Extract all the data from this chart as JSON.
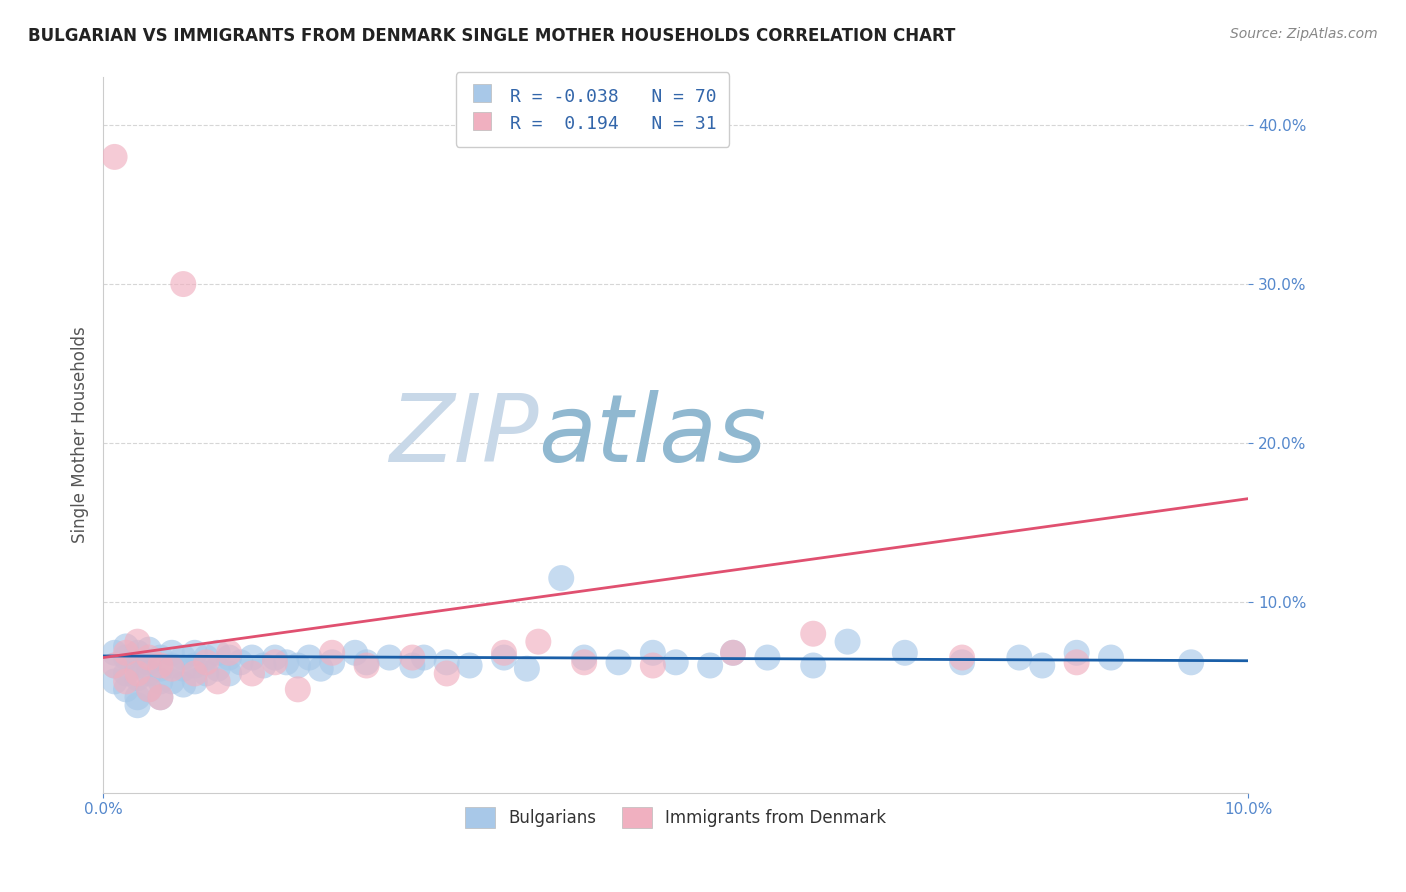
{
  "title": "BULGARIAN VS IMMIGRANTS FROM DENMARK SINGLE MOTHER HOUSEHOLDS CORRELATION CHART",
  "source": "Source: ZipAtlas.com",
  "ylabel": "Single Mother Households",
  "xlim": [
    0.0,
    0.1
  ],
  "ylim": [
    -0.02,
    0.43
  ],
  "blue_R": -0.038,
  "blue_N": 70,
  "pink_R": 0.194,
  "pink_N": 31,
  "blue_color": "#a8c8e8",
  "pink_color": "#f0b0c0",
  "blue_line_color": "#1a5fa8",
  "pink_line_color": "#e05070",
  "grid_color": "#cccccc",
  "watermark_zip_color": "#c8d8e8",
  "watermark_atlas_color": "#90b8d0",
  "legend_label_blue": "Bulgarians",
  "legend_label_pink": "Immigrants from Denmark",
  "title_color": "#222222",
  "source_color": "#888888",
  "axis_label_color": "#555555",
  "tick_color": "#5588cc",
  "legend_R_color": "#3366aa",
  "legend_N_color": "#3388cc",
  "blue_x": [
    0.001,
    0.001,
    0.001,
    0.002,
    0.002,
    0.002,
    0.002,
    0.003,
    0.003,
    0.003,
    0.003,
    0.003,
    0.004,
    0.004,
    0.004,
    0.004,
    0.005,
    0.005,
    0.005,
    0.005,
    0.006,
    0.006,
    0.006,
    0.007,
    0.007,
    0.007,
    0.008,
    0.008,
    0.008,
    0.009,
    0.009,
    0.01,
    0.01,
    0.011,
    0.011,
    0.012,
    0.013,
    0.014,
    0.015,
    0.016,
    0.017,
    0.018,
    0.019,
    0.02,
    0.022,
    0.023,
    0.025,
    0.027,
    0.028,
    0.03,
    0.032,
    0.035,
    0.037,
    0.04,
    0.042,
    0.045,
    0.048,
    0.05,
    0.053,
    0.055,
    0.058,
    0.062,
    0.065,
    0.07,
    0.075,
    0.08,
    0.082,
    0.085,
    0.088,
    0.095
  ],
  "blue_y": [
    0.068,
    0.06,
    0.05,
    0.072,
    0.065,
    0.055,
    0.045,
    0.068,
    0.06,
    0.052,
    0.04,
    0.035,
    0.07,
    0.062,
    0.055,
    0.045,
    0.065,
    0.058,
    0.05,
    0.04,
    0.068,
    0.06,
    0.05,
    0.065,
    0.058,
    0.048,
    0.068,
    0.06,
    0.05,
    0.065,
    0.055,
    0.068,
    0.058,
    0.065,
    0.055,
    0.062,
    0.065,
    0.06,
    0.065,
    0.062,
    0.06,
    0.065,
    0.058,
    0.062,
    0.068,
    0.062,
    0.065,
    0.06,
    0.065,
    0.062,
    0.06,
    0.065,
    0.058,
    0.115,
    0.065,
    0.062,
    0.068,
    0.062,
    0.06,
    0.068,
    0.065,
    0.06,
    0.075,
    0.068,
    0.062,
    0.065,
    0.06,
    0.068,
    0.065,
    0.062
  ],
  "pink_x": [
    0.001,
    0.001,
    0.002,
    0.002,
    0.003,
    0.003,
    0.004,
    0.004,
    0.005,
    0.005,
    0.006,
    0.007,
    0.008,
    0.009,
    0.01,
    0.011,
    0.013,
    0.015,
    0.017,
    0.02,
    0.023,
    0.027,
    0.03,
    0.035,
    0.038,
    0.042,
    0.048,
    0.055,
    0.062,
    0.075,
    0.085
  ],
  "pink_y": [
    0.38,
    0.06,
    0.068,
    0.05,
    0.075,
    0.055,
    0.065,
    0.045,
    0.06,
    0.04,
    0.058,
    0.3,
    0.055,
    0.062,
    0.05,
    0.068,
    0.055,
    0.062,
    0.045,
    0.068,
    0.06,
    0.065,
    0.055,
    0.068,
    0.075,
    0.062,
    0.06,
    0.068,
    0.08,
    0.065,
    0.062
  ]
}
